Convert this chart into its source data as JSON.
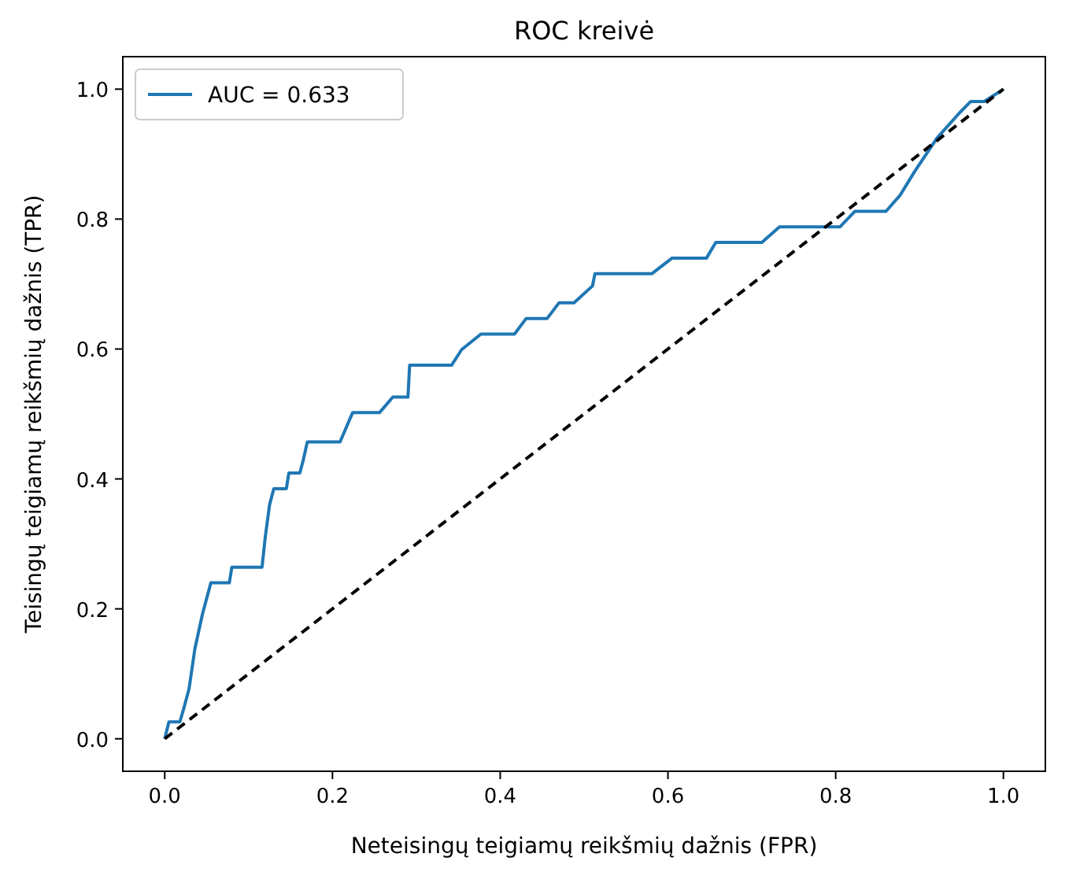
{
  "chart_data": {
    "type": "line",
    "title": "ROC kreivė",
    "xlabel": "Neteisingų teigiamų reikšmių dažnis (FPR)",
    "ylabel": "Teisingų teigiamų reikšmių dažnis (TPR)",
    "xlim": [
      -0.05,
      1.05
    ],
    "ylim": [
      -0.05,
      1.05
    ],
    "xticks": [
      {
        "value": 0,
        "label": "0.0"
      },
      {
        "value": 0.2,
        "label": "0.2"
      },
      {
        "value": 0.4,
        "label": "0.4"
      },
      {
        "value": 0.6,
        "label": "0.6"
      },
      {
        "value": 0.8,
        "label": "0.8"
      },
      {
        "value": 1,
        "label": "1.0"
      }
    ],
    "yticks": [
      {
        "value": 0,
        "label": "0.0"
      },
      {
        "value": 0.2,
        "label": "0.2"
      },
      {
        "value": 0.4,
        "label": "0.4"
      },
      {
        "value": 0.6,
        "label": "0.6"
      },
      {
        "value": 0.8,
        "label": "0.8"
      },
      {
        "value": 1,
        "label": "1.0"
      }
    ],
    "grid": false,
    "legend": "top left",
    "series": [
      {
        "name": "AUC = 0.633",
        "color": "#1f77b4",
        "line_style": "solid",
        "x": [
          0,
          0.005,
          0.018,
          0.023,
          0.029,
          0.036,
          0.045,
          0.055,
          0.077,
          0.08,
          0.116,
          0.12,
          0.125,
          0.13,
          0.145,
          0.148,
          0.161,
          0.165,
          0.17,
          0.209,
          0.224,
          0.256,
          0.272,
          0.29,
          0.292,
          0.342,
          0.354,
          0.377,
          0.417,
          0.431,
          0.456,
          0.47,
          0.488,
          0.51,
          0.513,
          0.581,
          0.605,
          0.646,
          0.657,
          0.712,
          0.733,
          0.805,
          0.823,
          0.86,
          0.877,
          0.894,
          0.921,
          0.948,
          0.961,
          0.977,
          1
        ],
        "values": [
          0,
          0.026,
          0.026,
          0.048,
          0.077,
          0.139,
          0.192,
          0.24,
          0.24,
          0.264,
          0.264,
          0.312,
          0.36,
          0.385,
          0.385,
          0.409,
          0.409,
          0.428,
          0.457,
          0.457,
          0.502,
          0.502,
          0.526,
          0.526,
          0.575,
          0.575,
          0.599,
          0.623,
          0.623,
          0.647,
          0.647,
          0.671,
          0.671,
          0.697,
          0.716,
          0.716,
          0.74,
          0.74,
          0.764,
          0.764,
          0.788,
          0.788,
          0.812,
          0.812,
          0.837,
          0.873,
          0.925,
          0.964,
          0.981,
          0.981,
          1
        ]
      },
      {
        "color": "#000000",
        "line_style": "dashed",
        "x": [
          0,
          1
        ],
        "values": [
          0,
          1
        ]
      }
    ]
  }
}
